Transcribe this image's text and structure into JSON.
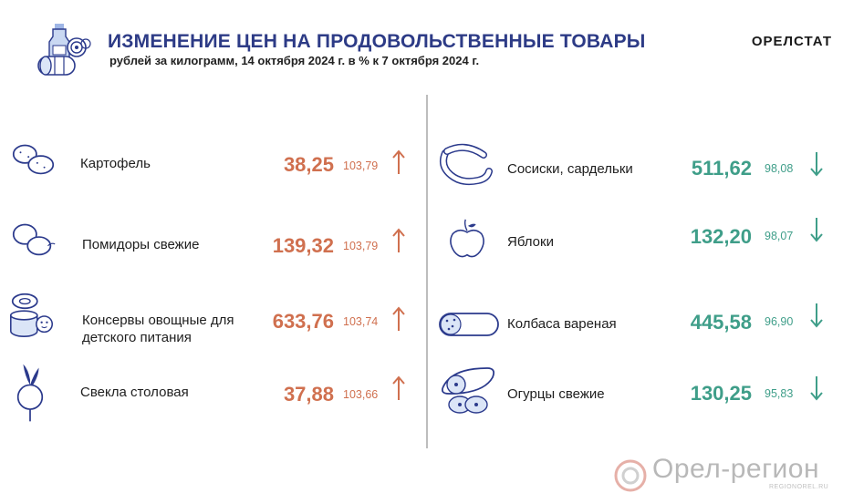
{
  "header": {
    "title": "ИЗМЕНЕНИЕ ЦЕН НА ПРОДОВОЛЬСТВЕННЫЕ ТОВАРЫ",
    "subtitle": "рублей за килограмм,  14 октября 2024 г. в % к 7 октября 2024 г.",
    "brand": "ОРЕЛСТАТ"
  },
  "colors": {
    "title": "#2d3b86",
    "increase": "#d0704f",
    "decrease": "#3f9e89",
    "icons": "#2b3a8c"
  },
  "left_items": [
    {
      "icon": "potato-icon",
      "name": "Картофель",
      "price": "38,25",
      "percent": "103,79",
      "direction": "up"
    },
    {
      "icon": "tomato-icon",
      "name": "Помидоры свежие",
      "price": "139,32",
      "percent": "103,79",
      "direction": "up"
    },
    {
      "icon": "baby-food-can-icon",
      "name": "Консервы овощные для детского питания",
      "price": "633,76",
      "percent": "103,74",
      "direction": "up"
    },
    {
      "icon": "beet-icon",
      "name": "Свекла столовая",
      "price": "37,88",
      "percent": "103,66",
      "direction": "up"
    }
  ],
  "right_items": [
    {
      "icon": "sausages-icon",
      "name": "Сосиски, сардельки",
      "price": "511,62",
      "percent": "98,08",
      "direction": "down"
    },
    {
      "icon": "apple-icon",
      "name": "Яблоки",
      "price": "132,20",
      "percent": "98,07",
      "direction": "down"
    },
    {
      "icon": "boiled-sausage-icon",
      "name": "Колбаса вареная",
      "price": "445,58",
      "percent": "96,90",
      "direction": "down"
    },
    {
      "icon": "cucumber-icon",
      "name": "Огурцы свежие",
      "price": "130,25",
      "percent": "95,83",
      "direction": "down"
    }
  ],
  "footer": {
    "logo_text": "Орел-регион",
    "url": "REGIONOREL.RU"
  }
}
